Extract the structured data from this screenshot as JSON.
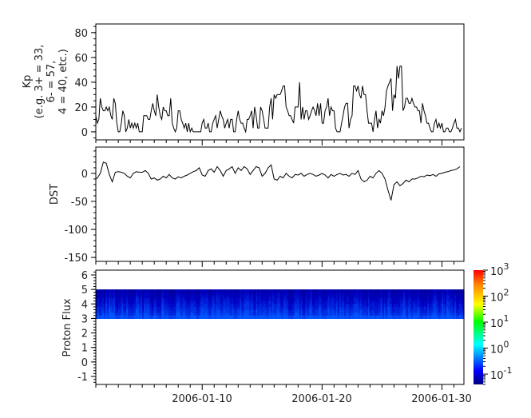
{
  "chart_data": [
    {
      "type": "line",
      "ylabel_lines": [
        "Kp",
        "(e.g. 3+ = 33,",
        "6- = 57,",
        "4 = 40, etc.)"
      ],
      "ylim": [
        -6.5,
        87
      ],
      "yticks": [
        "0",
        "20",
        "40",
        "60",
        "80"
      ],
      "xlim": [
        "2006-01-01T03:00",
        "2006-01-31T20:00"
      ],
      "x_start": "2006-01-01T00:00",
      "x_step_hours": 3,
      "series": [
        {
          "values": [
            27,
            13,
            7,
            10,
            27,
            20,
            17,
            17,
            20,
            17,
            20,
            13,
            10,
            27,
            23,
            7,
            0,
            0,
            7,
            17,
            13,
            0,
            3,
            10,
            3,
            7,
            3,
            7,
            3,
            7,
            0,
            0,
            0,
            13,
            13,
            13,
            10,
            10,
            17,
            23,
            17,
            13,
            30,
            20,
            13,
            10,
            20,
            17,
            17,
            13,
            13,
            27,
            7,
            3,
            0,
            3,
            17,
            17,
            10,
            7,
            3,
            7,
            0,
            7,
            0,
            3,
            0,
            0,
            0,
            0,
            0,
            0,
            7,
            10,
            3,
            3,
            7,
            0,
            0,
            7,
            10,
            13,
            3,
            10,
            17,
            13,
            10,
            3,
            7,
            10,
            3,
            10,
            10,
            0,
            0,
            10,
            17,
            10,
            7,
            7,
            3,
            0,
            10,
            10,
            13,
            17,
            3,
            20,
            13,
            3,
            3,
            20,
            17,
            10,
            3,
            3,
            3,
            20,
            27,
            10,
            30,
            27,
            30,
            30,
            30,
            33,
            37,
            37,
            20,
            17,
            13,
            13,
            10,
            7,
            20,
            20,
            20,
            40,
            10,
            20,
            10,
            17,
            17,
            10,
            13,
            17,
            20,
            17,
            13,
            23,
            13,
            23,
            7,
            7,
            17,
            20,
            27,
            13,
            20,
            17,
            17,
            3,
            0,
            0,
            0,
            7,
            13,
            20,
            23,
            23,
            3,
            10,
            13,
            37,
            37,
            33,
            37,
            30,
            27,
            37,
            30,
            30,
            17,
            7,
            7,
            7,
            0,
            10,
            17,
            3,
            10,
            7,
            17,
            13,
            20,
            33,
            37,
            40,
            43,
            17,
            30,
            27,
            53,
            43,
            53,
            53,
            17,
            20,
            27,
            27,
            23,
            23,
            27,
            23,
            20,
            20,
            17,
            17,
            7,
            23,
            17,
            13,
            7,
            7,
            3,
            0,
            0,
            7,
            10,
            3,
            7,
            3,
            7,
            0,
            0,
            3,
            3,
            0,
            0,
            3,
            7,
            10,
            3,
            3,
            0,
            3
          ]
        }
      ],
      "grid": false
    },
    {
      "type": "line",
      "ylabel": "DST",
      "ylim": [
        -157,
        47
      ],
      "yticks": [
        "0",
        "-50",
        "-100",
        "-150"
      ],
      "xlim": [
        "2006-01-01T03:00",
        "2006-01-31T20:00"
      ],
      "x_start": "2006-01-01T00:00",
      "x_step_hours": 6,
      "series": [
        {
          "values": [
            -12,
            -8,
            0,
            20,
            18,
            -2,
            -15,
            2,
            3,
            2,
            0,
            -5,
            -8,
            0,
            3,
            2,
            2,
            5,
            0,
            -10,
            -8,
            -12,
            -10,
            -5,
            -8,
            -2,
            -8,
            -10,
            -6,
            -8,
            -5,
            -3,
            0,
            3,
            5,
            10,
            -3,
            -5,
            5,
            8,
            2,
            12,
            5,
            -5,
            5,
            8,
            12,
            0,
            10,
            5,
            12,
            8,
            -2,
            5,
            12,
            10,
            -5,
            0,
            10,
            15,
            -10,
            -12,
            -5,
            -8,
            0,
            -5,
            -8,
            -2,
            -3,
            0,
            -5,
            -2,
            0,
            -2,
            -5,
            -3,
            0,
            -3,
            -8,
            -2,
            -5,
            -2,
            0,
            -3,
            -2,
            -5,
            0,
            -2,
            5,
            -10,
            -15,
            -12,
            -5,
            -8,
            0,
            5,
            0,
            -10,
            -30,
            -48,
            -20,
            -15,
            -22,
            -18,
            -12,
            -15,
            -10,
            -10,
            -8,
            -5,
            -6,
            -3,
            -4,
            -2,
            -5,
            -1,
            0,
            2,
            3,
            5,
            6,
            8,
            12
          ]
        }
      ],
      "grid": false
    },
    {
      "type": "heatmap",
      "ylabel": "Proton Flux",
      "ylim": [
        -1.55,
        6.33
      ],
      "yticks": [
        "6",
        "5",
        "4",
        "3",
        "2",
        "1",
        "0",
        "-1"
      ],
      "band": [
        3,
        5
      ],
      "xlim": [
        "2006-01-01T03:00",
        "2006-01-31T20:00"
      ],
      "xticks": [
        "2006-01-10",
        "2006-01-20",
        "2006-01-30"
      ],
      "colorbar": {
        "scale": "log",
        "range": [
          0.04,
          1000
        ],
        "ticks": [
          {
            "base": "10",
            "exp": "3"
          },
          {
            "base": "10",
            "exp": "2"
          },
          {
            "base": "10",
            "exp": "1"
          },
          {
            "base": "10",
            "exp": "0"
          },
          {
            "base": "10",
            "exp": "-1"
          }
        ],
        "colormap": "jet"
      },
      "value_range": [
        0.05,
        0.3
      ]
    }
  ]
}
